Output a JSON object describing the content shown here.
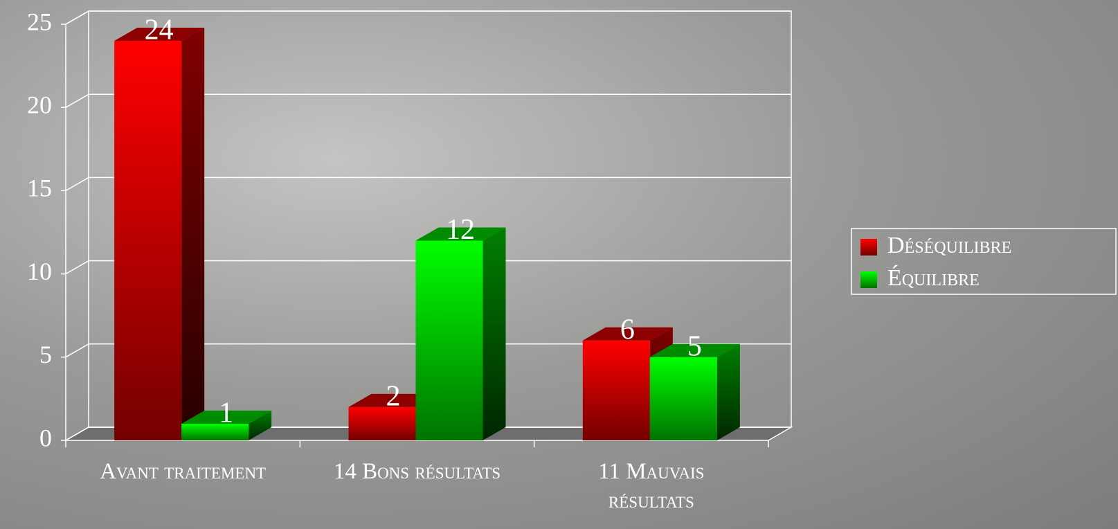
{
  "chart_data": {
    "type": "bar",
    "categories": [
      "Avant traitement",
      "14 Bons résultats",
      "11 Mauvais résultats"
    ],
    "series": [
      {
        "name": "Déséquilibre",
        "color": "#ff0000",
        "values": [
          24,
          2,
          6
        ]
      },
      {
        "name": "Équilibre",
        "color": "#00ff00",
        "values": [
          1,
          12,
          5
        ]
      }
    ],
    "ylim": [
      0,
      25
    ],
    "yticks": [
      0,
      5,
      10,
      15,
      20,
      25
    ],
    "grid": true,
    "legend": "right"
  }
}
